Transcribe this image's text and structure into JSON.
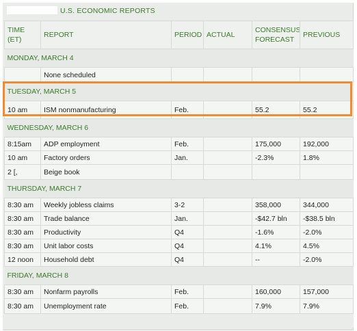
{
  "title": "U.S. ECONOMIC REPORTS",
  "columns": {
    "time": "TIME",
    "time_zone": "(ET)",
    "report": "REPORT",
    "period": "PERIOD",
    "actual": "ACTUAL",
    "consensus_line1": "CONSENSUS",
    "consensus_line2": "FORECAST",
    "previous": "PREVIOUS"
  },
  "days": [
    {
      "label": "MONDAY, MARCH 4",
      "rows": [
        {
          "time": "",
          "report": "None scheduled",
          "period": "",
          "actual": "",
          "consensus": "",
          "previous": ""
        }
      ]
    },
    {
      "label": "TUESDAY, MARCH 5",
      "rows": [
        {
          "time": "10 am",
          "report": "ISM nonmanufacturing",
          "period": "Feb.",
          "actual": "",
          "consensus": "55.2",
          "previous": "55.2"
        }
      ]
    },
    {
      "label": "WEDNESDAY, MARCH 6",
      "rows": [
        {
          "time": "8:15am",
          "report": "ADP employment",
          "period": "Feb.",
          "actual": "",
          "consensus": "175,000",
          "previous": "192,000"
        },
        {
          "time": "10 am",
          "report": "Factory orders",
          "period": "Jan.",
          "actual": "",
          "consensus": "-2.3%",
          "previous": "1.8%"
        },
        {
          "time": "2 [,",
          "report": "Beige book",
          "period": "",
          "actual": "",
          "consensus": "",
          "previous": ""
        }
      ]
    },
    {
      "label": "THURSDAY, MARCH 7",
      "rows": [
        {
          "time": "8:30 am",
          "report": "Weekly jobless claims",
          "period": "3-2",
          "actual": "",
          "consensus": "358,000",
          "previous": "344,000"
        },
        {
          "time": "8:30 am",
          "report": "Trade balance",
          "period": "Jan.",
          "actual": "",
          "consensus": "-$42.7 bln",
          "previous": "-$38.5 bln"
        },
        {
          "time": "8:30 am",
          "report": "Productivity",
          "period": "Q4",
          "actual": "",
          "consensus": "-1.6%",
          "previous": "-2.0%"
        },
        {
          "time": "8:30 am",
          "report": "Unit labor costs",
          "period": "Q4",
          "actual": "",
          "consensus": "4.1%",
          "previous": "4.5%"
        },
        {
          "time": "12 noon",
          "report": "Household debt",
          "period": "Q4",
          "actual": "",
          "consensus": "--",
          "previous": "-2.0%"
        }
      ]
    },
    {
      "label": "FRIDAY, MARCH 8",
      "rows": [
        {
          "time": "8:30 am",
          "report": "Nonfarm payrolls",
          "period": "Feb.",
          "actual": "",
          "consensus": "160,000",
          "previous": "157,000"
        },
        {
          "time": "8:30 am",
          "report": "Unemployment rate",
          "period": "Feb.",
          "actual": "",
          "consensus": "7.9%",
          "previous": "7.9%"
        }
      ]
    }
  ],
  "highlight_color": "#f28a2e",
  "accent_color": "#3c7a2a"
}
